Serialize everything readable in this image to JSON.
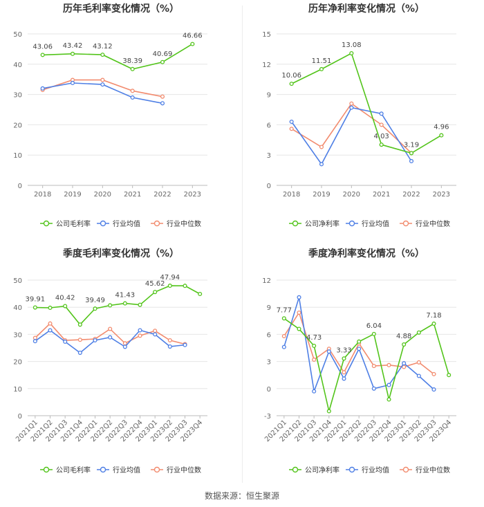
{
  "source_label": "数据来源：恒生聚源",
  "colors": {
    "primary": "#52c41a",
    "avg": "#4e7fe5",
    "median": "#f28b6e"
  },
  "chart_data": [
    {
      "id": "annual-gross",
      "type": "line",
      "title": "历年毛利率变化情况（%）",
      "categories": [
        "2018",
        "2019",
        "2020",
        "2021",
        "2022",
        "2023"
      ],
      "ylim": [
        0,
        50
      ],
      "yticks": [
        0,
        10,
        20,
        30,
        40,
        50
      ],
      "grid": true,
      "legend": [
        "公司毛利率",
        "行业均值",
        "行业中位数"
      ],
      "series": [
        {
          "name": "公司毛利率",
          "color": "#52c41a",
          "values": [
            43.06,
            43.42,
            43.12,
            38.39,
            40.69,
            46.66
          ]
        },
        {
          "name": "行业均值",
          "color": "#4e7fe5",
          "values": [
            32.0,
            33.8,
            33.3,
            29.0,
            27.1,
            null
          ]
        },
        {
          "name": "行业中位数",
          "color": "#f28b6e",
          "values": [
            31.5,
            34.8,
            34.8,
            31.2,
            29.3,
            null
          ]
        }
      ],
      "labels": [
        {
          "i": 0,
          "text": "43.06"
        },
        {
          "i": 1,
          "text": "43.42"
        },
        {
          "i": 2,
          "text": "43.12"
        },
        {
          "i": 3,
          "text": "38.39"
        },
        {
          "i": 4,
          "text": "40.69"
        },
        {
          "i": 5,
          "text": "46.66"
        }
      ]
    },
    {
      "id": "annual-net",
      "type": "line",
      "title": "历年净利率变化情况（%）",
      "categories": [
        "2018",
        "2019",
        "2020",
        "2021",
        "2022",
        "2023"
      ],
      "ylim": [
        0,
        15
      ],
      "yticks": [
        0,
        3,
        6,
        9,
        12,
        15
      ],
      "grid": true,
      "legend": [
        "公司净利率",
        "行业均值",
        "行业中位数"
      ],
      "series": [
        {
          "name": "公司净利率",
          "color": "#52c41a",
          "values": [
            10.06,
            11.51,
            13.08,
            4.03,
            3.19,
            4.96
          ]
        },
        {
          "name": "行业均值",
          "color": "#4e7fe5",
          "values": [
            6.3,
            2.1,
            7.7,
            7.1,
            2.4,
            null
          ]
        },
        {
          "name": "行业中位数",
          "color": "#f28b6e",
          "values": [
            5.6,
            3.8,
            8.1,
            6.0,
            3.2,
            null
          ]
        }
      ],
      "labels": [
        {
          "i": 0,
          "text": "10.06"
        },
        {
          "i": 1,
          "text": "11.51"
        },
        {
          "i": 2,
          "text": "13.08"
        },
        {
          "i": 3,
          "text": "4.03"
        },
        {
          "i": 4,
          "text": "3.19"
        },
        {
          "i": 5,
          "text": "4.96"
        }
      ]
    },
    {
      "id": "quarterly-gross",
      "type": "line",
      "title": "季度毛利率变化情况（%）",
      "categories": [
        "2021Q1",
        "2021Q2",
        "2021Q3",
        "2021Q4",
        "2022Q1",
        "2022Q2",
        "2022Q3",
        "2022Q4",
        "2023Q1",
        "2023Q2",
        "2023Q3",
        "2023Q4"
      ],
      "ylim": [
        0,
        50
      ],
      "yticks": [
        0,
        10,
        20,
        30,
        40,
        50
      ],
      "grid": true,
      "legend": [
        "公司毛利率",
        "行业均值",
        "行业中位数"
      ],
      "series": [
        {
          "name": "公司毛利率",
          "color": "#52c41a",
          "values": [
            39.91,
            39.8,
            40.42,
            33.6,
            39.49,
            40.7,
            41.43,
            40.9,
            45.62,
            47.94,
            47.9,
            44.9
          ]
        },
        {
          "name": "行业均值",
          "color": "#4e7fe5",
          "values": [
            27.5,
            31.5,
            27.3,
            23.2,
            27.8,
            28.9,
            25.4,
            31.5,
            30.0,
            25.5,
            26.1,
            null
          ]
        },
        {
          "name": "行业中位数",
          "color": "#f28b6e",
          "values": [
            28.7,
            34.0,
            27.8,
            28.0,
            28.3,
            32.0,
            26.7,
            29.5,
            31.3,
            27.8,
            26.4,
            null
          ]
        }
      ],
      "labels": [
        {
          "i": 0,
          "text": "39.91"
        },
        {
          "i": 2,
          "text": "40.42"
        },
        {
          "i": 4,
          "text": "39.49"
        },
        {
          "i": 6,
          "text": "41.43"
        },
        {
          "i": 8,
          "text": "45.62"
        },
        {
          "i": 9,
          "text": "47.94"
        }
      ]
    },
    {
      "id": "quarterly-net",
      "type": "line",
      "title": "季度净利率变化情况（%）",
      "categories": [
        "2021Q1",
        "2021Q2",
        "2021Q3",
        "2021Q4",
        "2022Q1",
        "2022Q2",
        "2022Q3",
        "2022Q4",
        "2023Q1",
        "2023Q2",
        "2023Q3",
        "2023Q4"
      ],
      "ylim": [
        -3,
        12
      ],
      "yticks": [
        -3,
        0,
        3,
        6,
        9,
        12
      ],
      "grid": true,
      "legend": [
        "公司净利率",
        "行业均值",
        "行业中位数"
      ],
      "series": [
        {
          "name": "公司净利率",
          "color": "#52c41a",
          "values": [
            7.77,
            6.6,
            4.73,
            -2.5,
            3.33,
            5.2,
            6.04,
            -1.2,
            4.88,
            6.2,
            7.18,
            1.5
          ]
        },
        {
          "name": "行业均值",
          "color": "#4e7fe5",
          "values": [
            4.6,
            10.1,
            -0.3,
            4.1,
            1.1,
            4.4,
            0.0,
            0.4,
            2.8,
            1.4,
            -0.1,
            null
          ]
        },
        {
          "name": "行业中位数",
          "color": "#f28b6e",
          "values": [
            5.8,
            8.4,
            3.2,
            4.4,
            1.8,
            5.0,
            2.5,
            2.6,
            2.4,
            2.9,
            1.6,
            null
          ]
        }
      ],
      "labels": [
        {
          "i": 0,
          "text": "7.77"
        },
        {
          "i": 2,
          "text": "4.73"
        },
        {
          "i": 4,
          "text": "3.33"
        },
        {
          "i": 6,
          "text": "6.04"
        },
        {
          "i": 8,
          "text": "4.88"
        },
        {
          "i": 10,
          "text": "7.18"
        }
      ]
    }
  ]
}
